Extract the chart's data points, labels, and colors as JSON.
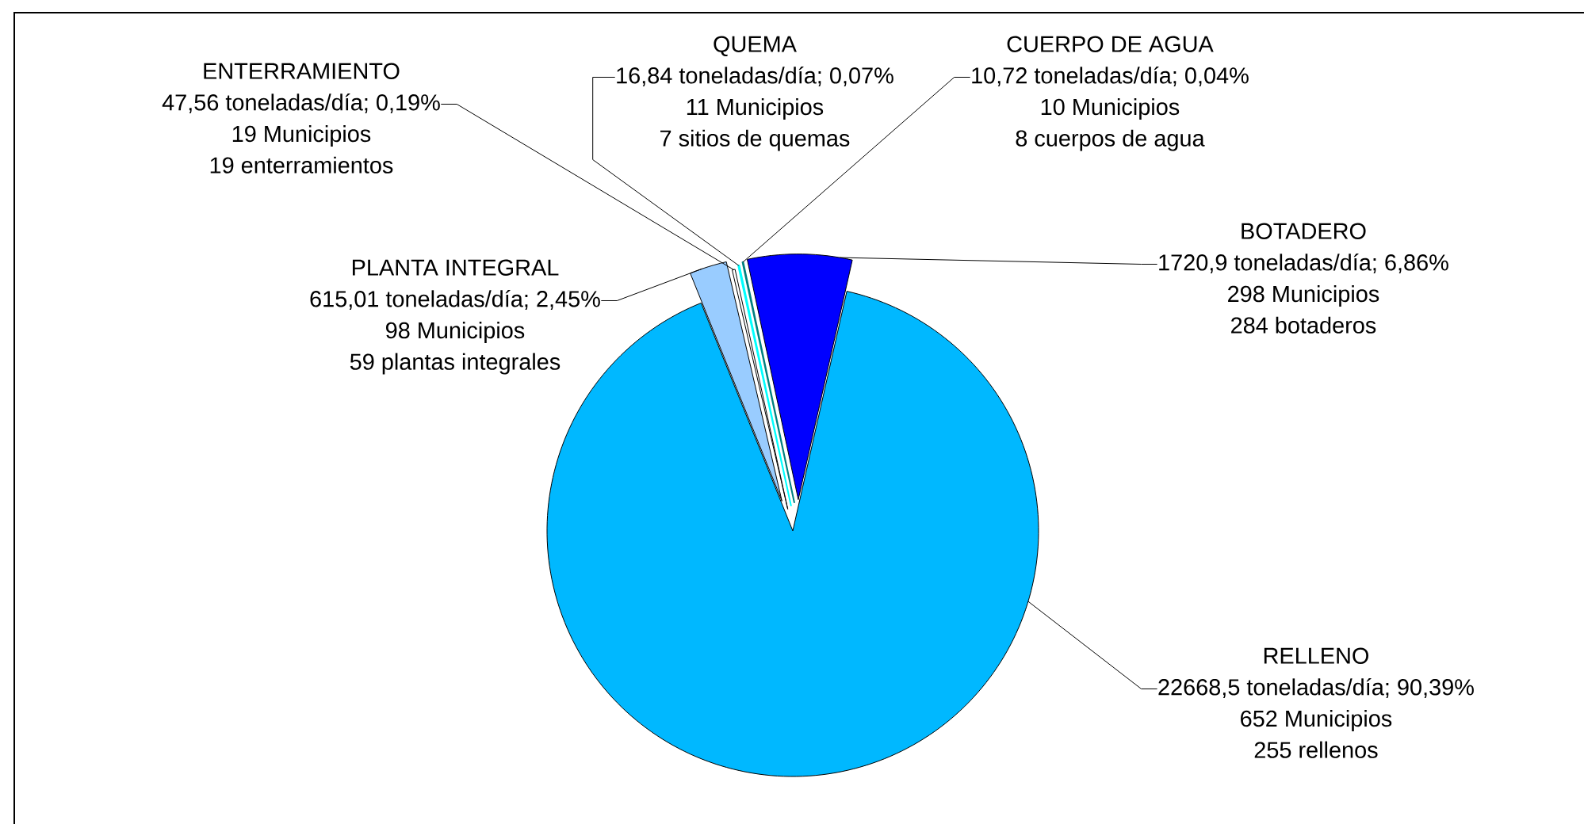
{
  "chart_data": {
    "type": "pie",
    "categories": [
      "BOTADERO",
      "RELLENO",
      "PLANTA INTEGRAL",
      "ENTERRAMIENTO",
      "QUEMA",
      "CUERPO DE AGUA"
    ],
    "values": [
      1720.9,
      22668.5,
      615.01,
      47.56,
      16.84,
      10.72
    ],
    "colors": [
      "#0000ff",
      "#00b8ff",
      "#99ccff",
      "#ffffff",
      "#00ffff",
      "#008080"
    ],
    "value_labels": [
      "1720,9 toneladas/día; 6,86%",
      "22668,5 toneladas/día; 90,39%",
      "615,01 toneladas/día; 2,45%",
      "47,56 toneladas/día; 0,19%",
      "16,84 toneladas/día; 0,07%",
      "10,72 toneladas/día; 0,04%"
    ],
    "annotations": [
      "298 Municipios",
      "284 botaderos",
      "652 Municipios",
      "255 rellenos",
      "98 Municipios",
      "59 plantas integrales",
      "19 Municipios",
      "19 enterramientos",
      "11 Municipios",
      "7 sitios de quemas",
      "10 Municipios",
      "8 cuerpos de agua"
    ]
  }
}
